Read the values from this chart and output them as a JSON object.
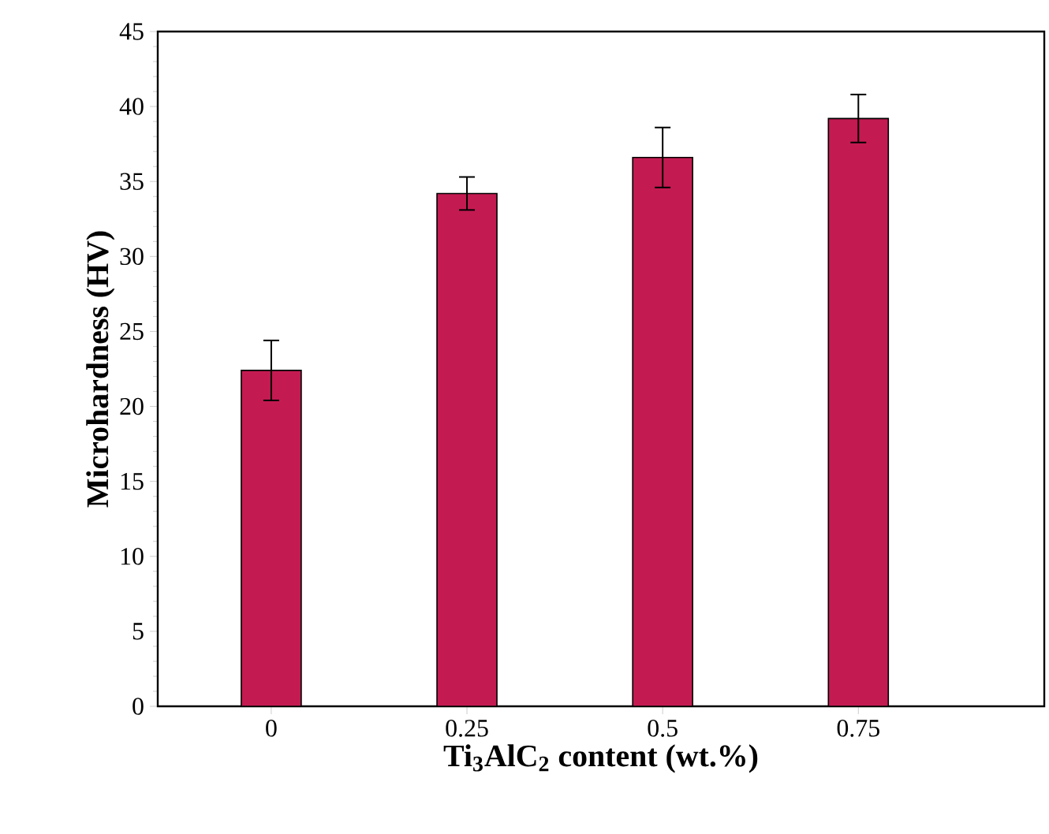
{
  "chart_data": {
    "type": "bar",
    "xlabel": "Ti$_{3}$AlC$_{2}$ content (wt.%)",
    "ylabel": "Microhardness (HV)",
    "categories": [
      "0",
      "0.25",
      "0.5",
      "0.75"
    ],
    "values": [
      22.4,
      34.2,
      36.6,
      39.2
    ],
    "errors": [
      2.0,
      1.1,
      2.0,
      1.6
    ],
    "color": "#c41a52",
    "ylim": [
      0,
      45
    ],
    "yticks": [
      0,
      5,
      10,
      15,
      20,
      25,
      30,
      35,
      40,
      45
    ],
    "grid": false
  }
}
